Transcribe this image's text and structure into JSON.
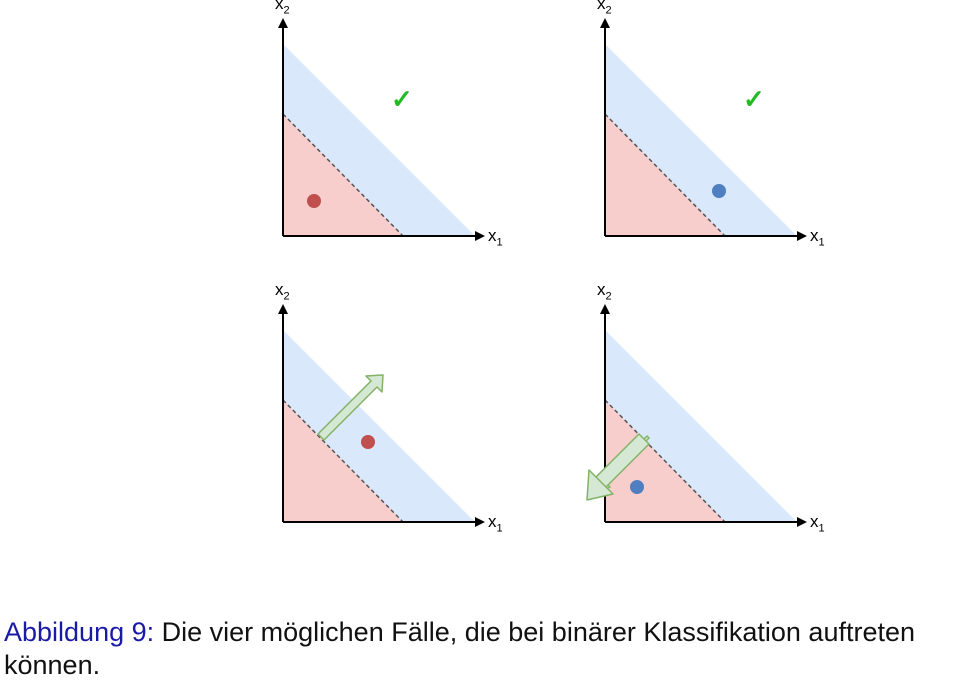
{
  "panels": [
    {
      "x_label": "x",
      "x_sub": "1",
      "y_label": "x",
      "y_sub": "2",
      "check": "✓",
      "point_color": "#c0504d"
    },
    {
      "x_label": "x",
      "x_sub": "1",
      "y_label": "x",
      "y_sub": "2",
      "check": "✓",
      "point_color": "#4f7fc0"
    },
    {
      "x_label": "x",
      "x_sub": "1",
      "y_label": "x",
      "y_sub": "2",
      "check": "",
      "point_color": "#c0504d"
    },
    {
      "x_label": "x",
      "x_sub": "1",
      "y_label": "x",
      "y_sub": "2",
      "check": "",
      "point_color": "#4f7fc0"
    }
  ],
  "colors": {
    "blue_region": "#dae8fc",
    "red_region": "#f8cecc",
    "arrow_fill": "#d5e8d4",
    "arrow_stroke": "#82b366",
    "check": "#22bb22"
  },
  "caption": {
    "label": "Abbildung 9:",
    "text": " Die vier möglichen Fälle, die bei binärer Klassifikation auftreten können."
  }
}
